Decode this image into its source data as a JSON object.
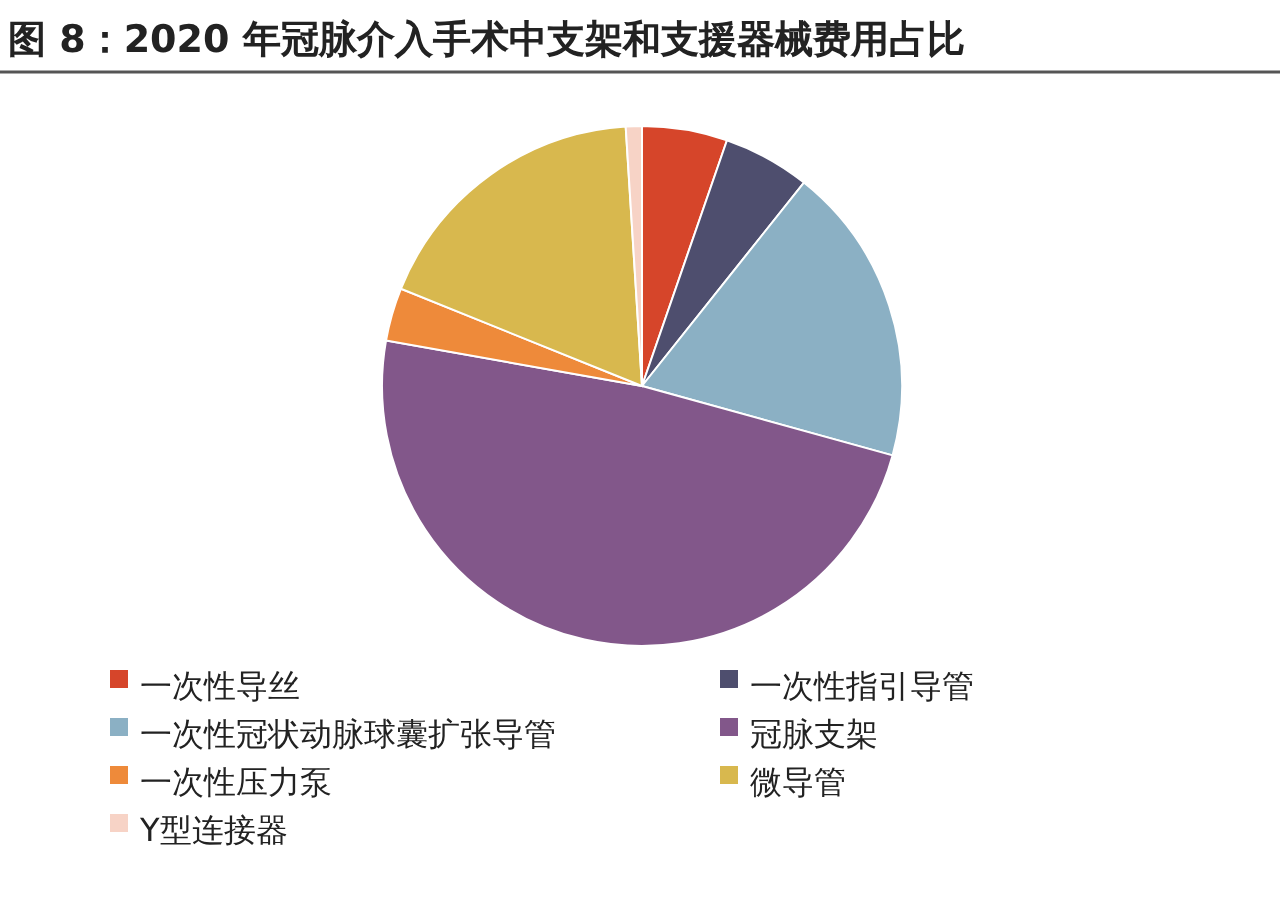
{
  "chart_data": {
    "type": "pie",
    "title": "图 8：2020 年冠脉介入手术中支架和支援器械费用占比",
    "categories": [
      "一次性导丝",
      "一次性指引导管",
      "一次性冠状动脉球囊扩张导管",
      "冠脉支架",
      "一次性压力泵",
      "微导管",
      "Y型连接器"
    ],
    "values": [
      5.3,
      5.4,
      18.6,
      48.5,
      3.3,
      17.9,
      1.0
    ],
    "colors": [
      "#d6452a",
      "#4e4e6e",
      "#8bb0c4",
      "#82578a",
      "#ee8a3a",
      "#d8b84e",
      "#f7d3c6"
    ],
    "legend": "bottom"
  }
}
